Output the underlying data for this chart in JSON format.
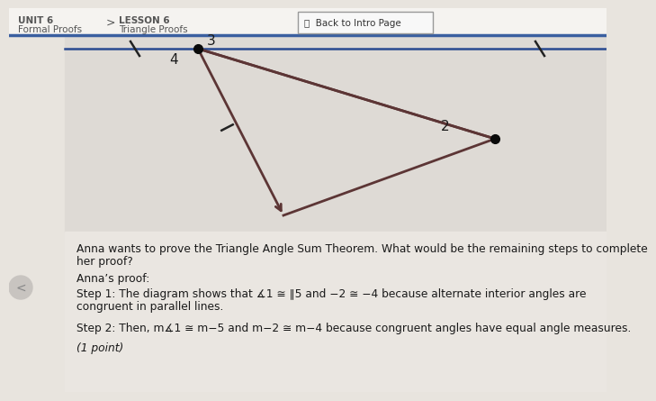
{
  "bg_color": "#e8e4de",
  "header_bg": "#f5f3f0",
  "header_line_color": "#3a5fa0",
  "unit_label": "UNIT 6",
  "unit_sub": "Formal Proofs",
  "lesson_label": "LESSON 6",
  "lesson_sub": "Triangle Proofs",
  "button_label": "Back to Intro Page",
  "diagram_bg": "#dedad5",
  "text_color": "#1a1a1a",
  "question_text_line1": "Anna wants to prove the Triangle Angle Sum Theorem. What would be the remaining steps to complete",
  "question_text_line2": "her proof?",
  "proof_label": "Anna’s proof:",
  "step1_line1": "Step 1: The diagram shows that ∡1 ≅ ∥5 and −2 ≅ −4 because alternate interior angles are",
  "step1_line2": "congruent in parallel lines.",
  "step2_text": "Step 2: Then, m∡1 ≅ m−5 and m−2 ≅ m−4 because congruent angles have equal angle measures.",
  "point_text": "(1 point)",
  "line_color": "#5c3535",
  "dot_color": "#0a0a0a",
  "parallel_line_color": "#2a4a90",
  "tick_color": "#222222",
  "header_text_color": "#555555",
  "nav_color": "#c8c4c0",
  "nav_text_color": "#888888"
}
